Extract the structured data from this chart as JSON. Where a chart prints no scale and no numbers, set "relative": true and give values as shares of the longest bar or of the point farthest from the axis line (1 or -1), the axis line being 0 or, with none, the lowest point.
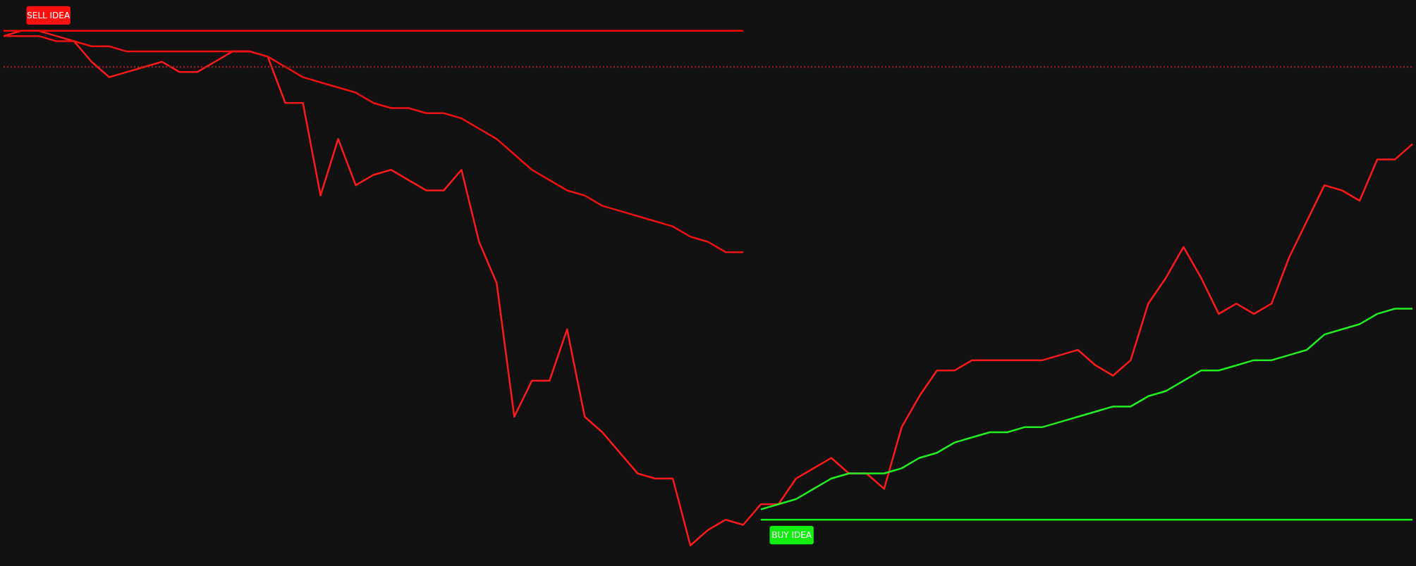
{
  "chart_data": {
    "type": "line",
    "relative": true,
    "categories": [
      null,
      null,
      null,
      null,
      null,
      null,
      null,
      null,
      null,
      null,
      null,
      null,
      null,
      null,
      null,
      null,
      null,
      null,
      null,
      null,
      null,
      null,
      null,
      null,
      null,
      null,
      null,
      null,
      null,
      null,
      null,
      null,
      null,
      null,
      null,
      null,
      null,
      null,
      null,
      null,
      null,
      null,
      null,
      null,
      null,
      null,
      null,
      null,
      null,
      null,
      null,
      null,
      null,
      null,
      null,
      null,
      null,
      null,
      null,
      null,
      null,
      null,
      null,
      null,
      null,
      null,
      null,
      null,
      null,
      null,
      null,
      null,
      null,
      null,
      null,
      null,
      null,
      null,
      null,
      null,
      null
    ],
    "series": [
      {
        "color": "#ff1a1a",
        "values": [
          0.99,
          1.0,
          1.0,
          0.99,
          0.98,
          0.94,
          0.91,
          0.92,
          0.93,
          0.94,
          0.92,
          0.92,
          0.94,
          0.96,
          0.96,
          0.95,
          0.86,
          0.86,
          0.68,
          0.79,
          0.7,
          0.72,
          0.73,
          0.71,
          0.69,
          0.69,
          0.73,
          0.59,
          0.51,
          0.25,
          0.32,
          0.32,
          0.42,
          0.25,
          0.22,
          0.18,
          0.14,
          0.13,
          0.13,
          0,
          0.03,
          0.05,
          0.04,
          0.08,
          0.08,
          0.13,
          0.15,
          0.17,
          0.14,
          0.14,
          0.11,
          0.23,
          0.29,
          0.34,
          0.34,
          0.36,
          0.36,
          0.36,
          0.36,
          0.36,
          0.37,
          0.38,
          0.35,
          0.33,
          0.36,
          0.47,
          0.52,
          0.58,
          0.52,
          0.45,
          0.47,
          0.45,
          0.47,
          0.56,
          0.63,
          0.7,
          0.69,
          0.67,
          0.75,
          0.75,
          0.78
        ]
      },
      {
        "color": "#ee1111",
        "values": [
          0.99,
          0.99,
          0.99,
          0.98,
          0.98,
          0.97,
          0.97,
          0.96,
          0.96,
          0.96,
          0.96,
          0.96,
          0.96,
          0.96,
          0.96,
          0.95,
          0.93,
          0.91,
          0.9,
          0.89,
          0.88,
          0.86,
          0.85,
          0.85,
          0.84,
          0.84,
          0.83,
          0.81,
          0.79,
          0.76,
          0.73,
          0.71,
          0.69,
          0.68,
          0.66,
          0.65,
          0.64,
          0.63,
          0.62,
          0.6,
          0.59,
          0.57,
          0.57,
          null,
          null,
          null,
          null,
          null,
          null,
          null,
          null,
          null,
          null,
          null,
          null,
          null,
          null,
          null,
          null,
          null,
          null,
          null,
          null,
          null,
          null,
          null,
          null,
          null,
          null,
          null,
          null,
          null,
          null,
          null,
          null,
          null,
          null,
          null,
          null,
          null,
          null
        ]
      },
      {
        "color": "#22ee22",
        "values": [
          null,
          null,
          null,
          null,
          null,
          null,
          null,
          null,
          null,
          null,
          null,
          null,
          null,
          null,
          null,
          null,
          null,
          null,
          null,
          null,
          null,
          null,
          null,
          null,
          null,
          null,
          null,
          null,
          null,
          null,
          null,
          null,
          null,
          null,
          null,
          null,
          null,
          null,
          null,
          null,
          null,
          null,
          null,
          0.07,
          0.08,
          0.09,
          0.11,
          0.13,
          0.14,
          0.14,
          0.14,
          0.15,
          0.17,
          0.18,
          0.2,
          0.21,
          0.22,
          0.22,
          0.23,
          0.23,
          0.24,
          0.25,
          0.26,
          0.27,
          0.27,
          0.29,
          0.3,
          0.32,
          0.34,
          0.34,
          0.35,
          0.36,
          0.36,
          0.37,
          0.38,
          0.41,
          0.42,
          0.43,
          0.45,
          0.46,
          0.46
        ]
      },
      {
        "color": "#ff0000",
        "values": [
          1.0,
          1.0,
          1.0,
          1.0,
          1.0,
          1.0,
          1.0,
          1.0,
          1.0,
          1.0,
          1.0,
          1.0,
          1.0,
          1.0,
          1.0,
          1.0,
          1.0,
          1.0,
          1.0,
          1.0,
          1.0,
          1.0,
          1.0,
          1.0,
          1.0,
          1.0,
          1.0,
          1.0,
          1.0,
          1.0,
          1.0,
          1.0,
          1.0,
          1.0,
          1.0,
          1.0,
          1.0,
          1.0,
          1.0,
          1.0,
          1.0,
          1.0,
          1.0,
          null,
          null,
          null,
          null,
          null,
          null,
          null,
          null,
          null,
          null,
          null,
          null,
          null,
          null,
          null,
          null,
          null,
          null,
          null,
          null,
          null,
          null,
          null,
          null,
          null,
          null,
          null,
          null,
          null,
          null,
          null,
          null,
          null,
          null,
          null,
          null,
          null,
          null
        ]
      },
      {
        "color": "#11ee11",
        "values": [
          null,
          null,
          null,
          null,
          null,
          null,
          null,
          null,
          null,
          null,
          null,
          null,
          null,
          null,
          null,
          null,
          null,
          null,
          null,
          null,
          null,
          null,
          null,
          null,
          null,
          null,
          null,
          null,
          null,
          null,
          null,
          null,
          null,
          null,
          null,
          null,
          null,
          null,
          null,
          null,
          null,
          null,
          null,
          0.05,
          0.05,
          0.05,
          0.05,
          0.05,
          0.05,
          0.05,
          0.05,
          0.05,
          0.05,
          0.05,
          0.05,
          0.05,
          0.05,
          0.05,
          0.05,
          0.05,
          0.05,
          0.05,
          0.05,
          0.05,
          0.05,
          0.05,
          0.05,
          0.05,
          0.05,
          0.05,
          0.05,
          0.05,
          0.05,
          0.05,
          0.05,
          0.05,
          0.05,
          0.05,
          0.05,
          0.05,
          0.05
        ]
      },
      {
        "color": "#992222",
        "line_style": "dotted",
        "values": [
          0.93,
          0.93,
          0.93,
          0.93,
          0.93,
          0.93,
          0.93,
          0.93,
          0.93,
          0.93,
          0.93,
          0.93,
          0.93,
          0.93,
          0.93,
          0.93,
          0.93,
          0.93,
          0.93,
          0.93,
          0.93,
          0.93,
          0.93,
          0.93,
          0.93,
          0.93,
          0.93,
          0.93,
          0.93,
          0.93,
          0.93,
          0.93,
          0.93,
          0.93,
          0.93,
          0.93,
          0.93,
          0.93,
          0.93,
          0.93,
          0.93,
          0.93,
          0.93,
          0.93,
          0.93,
          0.93,
          0.93,
          0.93,
          0.93,
          0.93,
          0.93,
          0.93,
          0.93,
          0.93,
          0.93,
          0.93,
          0.93,
          0.93,
          0.93,
          0.93,
          0.93,
          0.93,
          0.93,
          0.93,
          0.93,
          0.93,
          0.93,
          0.93,
          0.93,
          0.93,
          0.93,
          0.93,
          0.93,
          0.93,
          0.93,
          0.93,
          0.93,
          0.93,
          0.93,
          0.93,
          0.93
        ]
      }
    ],
    "annotations": [
      "SELL IDEA",
      "BUY IDEA"
    ]
  }
}
